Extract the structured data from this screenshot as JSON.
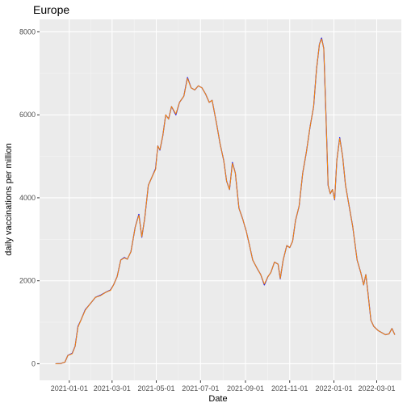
{
  "chart_data": {
    "type": "line",
    "title": "Europe",
    "xlabel": "Date",
    "ylabel": "daily vaccinations per million",
    "x_ticks": [
      "2021-01-01",
      "2021-03-01",
      "2021-05-01",
      "2021-07-01",
      "2021-09-01",
      "2021-11-01",
      "2022-01-01",
      "2022-03-01"
    ],
    "y_ticks": [
      0,
      2000,
      4000,
      6000,
      8000
    ],
    "xlim": [
      "2020-11-21",
      "2022-04-04"
    ],
    "ylim": [
      -400,
      8300
    ],
    "grid": true,
    "legend": "none",
    "series": [
      {
        "color": "#0000ff",
        "points": [
          [
            "2020-12-13",
            0
          ],
          [
            "2020-12-20",
            5
          ],
          [
            "2020-12-26",
            40
          ],
          [
            "2020-12-30",
            200
          ],
          [
            "2021-01-05",
            250
          ],
          [
            "2021-01-09",
            420
          ],
          [
            "2021-01-13",
            900
          ],
          [
            "2021-01-17",
            1050
          ],
          [
            "2021-01-23",
            1300
          ],
          [
            "2021-01-30",
            1450
          ],
          [
            "2021-02-06",
            1600
          ],
          [
            "2021-02-13",
            1650
          ],
          [
            "2021-02-20",
            1720
          ],
          [
            "2021-02-27",
            1780
          ],
          [
            "2021-03-03",
            1900
          ],
          [
            "2021-03-08",
            2100
          ],
          [
            "2021-03-13",
            2500
          ],
          [
            "2021-03-18",
            2560
          ],
          [
            "2021-03-22",
            2520
          ],
          [
            "2021-03-27",
            2700
          ],
          [
            "2021-04-02",
            3300
          ],
          [
            "2021-04-07",
            3600
          ],
          [
            "2021-04-11",
            3050
          ],
          [
            "2021-04-15",
            3500
          ],
          [
            "2021-04-20",
            4300
          ],
          [
            "2021-04-25",
            4500
          ],
          [
            "2021-04-30",
            4700
          ],
          [
            "2021-05-03",
            5250
          ],
          [
            "2021-05-06",
            5150
          ],
          [
            "2021-05-10",
            5500
          ],
          [
            "2021-05-14",
            6000
          ],
          [
            "2021-05-18",
            5900
          ],
          [
            "2021-05-22",
            6200
          ],
          [
            "2021-05-28",
            6000
          ],
          [
            "2021-06-02",
            6300
          ],
          [
            "2021-06-08",
            6450
          ],
          [
            "2021-06-13",
            6900
          ],
          [
            "2021-06-18",
            6650
          ],
          [
            "2021-06-23",
            6600
          ],
          [
            "2021-06-28",
            6700
          ],
          [
            "2021-07-03",
            6650
          ],
          [
            "2021-07-08",
            6500
          ],
          [
            "2021-07-13",
            6300
          ],
          [
            "2021-07-17",
            6350
          ],
          [
            "2021-07-23",
            5800
          ],
          [
            "2021-07-28",
            5300
          ],
          [
            "2021-08-02",
            4900
          ],
          [
            "2021-08-06",
            4400
          ],
          [
            "2021-08-10",
            4200
          ],
          [
            "2021-08-14",
            4850
          ],
          [
            "2021-08-18",
            4600
          ],
          [
            "2021-08-23",
            3750
          ],
          [
            "2021-08-28",
            3500
          ],
          [
            "2021-09-02",
            3200
          ],
          [
            "2021-09-06",
            2900
          ],
          [
            "2021-09-11",
            2500
          ],
          [
            "2021-09-17",
            2300
          ],
          [
            "2021-09-22",
            2150
          ],
          [
            "2021-09-27",
            1900
          ],
          [
            "2021-10-02",
            2100
          ],
          [
            "2021-10-06",
            2200
          ],
          [
            "2021-10-11",
            2450
          ],
          [
            "2021-10-16",
            2400
          ],
          [
            "2021-10-19",
            2050
          ],
          [
            "2021-10-23",
            2500
          ],
          [
            "2021-10-28",
            2850
          ],
          [
            "2021-11-01",
            2800
          ],
          [
            "2021-11-05",
            2950
          ],
          [
            "2021-11-09",
            3450
          ],
          [
            "2021-11-14",
            3800
          ],
          [
            "2021-11-19",
            4600
          ],
          [
            "2021-11-24",
            5100
          ],
          [
            "2021-11-29",
            5700
          ],
          [
            "2021-12-04",
            6200
          ],
          [
            "2021-12-08",
            7100
          ],
          [
            "2021-12-12",
            7700
          ],
          [
            "2021-12-15",
            7850
          ],
          [
            "2021-12-18",
            7600
          ],
          [
            "2021-12-21",
            6000
          ],
          [
            "2021-12-24",
            4300
          ],
          [
            "2021-12-27",
            4100
          ],
          [
            "2021-12-30",
            4200
          ],
          [
            "2022-01-02",
            3950
          ],
          [
            "2022-01-05",
            4900
          ],
          [
            "2022-01-09",
            5450
          ],
          [
            "2022-01-13",
            5000
          ],
          [
            "2022-01-17",
            4300
          ],
          [
            "2022-01-22",
            3800
          ],
          [
            "2022-01-27",
            3300
          ],
          [
            "2022-02-02",
            2500
          ],
          [
            "2022-02-07",
            2200
          ],
          [
            "2022-02-11",
            1900
          ],
          [
            "2022-02-14",
            2150
          ],
          [
            "2022-02-17",
            1700
          ],
          [
            "2022-02-21",
            1050
          ],
          [
            "2022-02-25",
            900
          ],
          [
            "2022-03-03",
            800
          ],
          [
            "2022-03-08",
            750
          ],
          [
            "2022-03-13",
            700
          ],
          [
            "2022-03-18",
            720
          ],
          [
            "2022-03-22",
            850
          ],
          [
            "2022-03-26",
            700
          ]
        ]
      },
      {
        "color": "#ff8c00",
        "points": [
          [
            "2020-12-13",
            0
          ],
          [
            "2020-12-20",
            5
          ],
          [
            "2020-12-26",
            40
          ],
          [
            "2020-12-30",
            200
          ],
          [
            "2021-01-05",
            240
          ],
          [
            "2021-01-09",
            420
          ],
          [
            "2021-01-13",
            880
          ],
          [
            "2021-01-17",
            1050
          ],
          [
            "2021-01-23",
            1290
          ],
          [
            "2021-01-30",
            1450
          ],
          [
            "2021-02-06",
            1600
          ],
          [
            "2021-02-13",
            1640
          ],
          [
            "2021-02-20",
            1720
          ],
          [
            "2021-02-27",
            1770
          ],
          [
            "2021-03-03",
            1900
          ],
          [
            "2021-03-08",
            2100
          ],
          [
            "2021-03-13",
            2500
          ],
          [
            "2021-03-18",
            2550
          ],
          [
            "2021-03-22",
            2520
          ],
          [
            "2021-03-27",
            2700
          ],
          [
            "2021-04-02",
            3300
          ],
          [
            "2021-04-07",
            3580
          ],
          [
            "2021-04-11",
            3060
          ],
          [
            "2021-04-15",
            3500
          ],
          [
            "2021-04-20",
            4300
          ],
          [
            "2021-04-25",
            4500
          ],
          [
            "2021-04-30",
            4680
          ],
          [
            "2021-05-03",
            5250
          ],
          [
            "2021-05-06",
            5160
          ],
          [
            "2021-05-10",
            5500
          ],
          [
            "2021-05-14",
            6000
          ],
          [
            "2021-05-18",
            5900
          ],
          [
            "2021-05-22",
            6200
          ],
          [
            "2021-05-28",
            6020
          ],
          [
            "2021-06-02",
            6300
          ],
          [
            "2021-06-08",
            6450
          ],
          [
            "2021-06-13",
            6880
          ],
          [
            "2021-06-18",
            6650
          ],
          [
            "2021-06-23",
            6600
          ],
          [
            "2021-06-28",
            6700
          ],
          [
            "2021-07-03",
            6650
          ],
          [
            "2021-07-08",
            6500
          ],
          [
            "2021-07-13",
            6300
          ],
          [
            "2021-07-17",
            6350
          ],
          [
            "2021-07-23",
            5800
          ],
          [
            "2021-07-28",
            5300
          ],
          [
            "2021-08-02",
            4900
          ],
          [
            "2021-08-06",
            4400
          ],
          [
            "2021-08-10",
            4200
          ],
          [
            "2021-08-14",
            4830
          ],
          [
            "2021-08-18",
            4600
          ],
          [
            "2021-08-23",
            3750
          ],
          [
            "2021-08-28",
            3500
          ],
          [
            "2021-09-02",
            3200
          ],
          [
            "2021-09-06",
            2900
          ],
          [
            "2021-09-11",
            2500
          ],
          [
            "2021-09-17",
            2300
          ],
          [
            "2021-09-22",
            2150
          ],
          [
            "2021-09-27",
            1920
          ],
          [
            "2021-10-02",
            2100
          ],
          [
            "2021-10-06",
            2200
          ],
          [
            "2021-10-11",
            2450
          ],
          [
            "2021-10-16",
            2400
          ],
          [
            "2021-10-19",
            2060
          ],
          [
            "2021-10-23",
            2500
          ],
          [
            "2021-10-28",
            2850
          ],
          [
            "2021-11-01",
            2800
          ],
          [
            "2021-11-05",
            2950
          ],
          [
            "2021-11-09",
            3450
          ],
          [
            "2021-11-14",
            3800
          ],
          [
            "2021-11-19",
            4600
          ],
          [
            "2021-11-24",
            5100
          ],
          [
            "2021-11-29",
            5700
          ],
          [
            "2021-12-04",
            6200
          ],
          [
            "2021-12-08",
            7100
          ],
          [
            "2021-12-12",
            7700
          ],
          [
            "2021-12-15",
            7830
          ],
          [
            "2021-12-18",
            7600
          ],
          [
            "2021-12-21",
            6000
          ],
          [
            "2021-12-24",
            4300
          ],
          [
            "2021-12-27",
            4100
          ],
          [
            "2021-12-30",
            4200
          ],
          [
            "2022-01-02",
            3960
          ],
          [
            "2022-01-05",
            4900
          ],
          [
            "2022-01-09",
            5430
          ],
          [
            "2022-01-13",
            5000
          ],
          [
            "2022-01-17",
            4300
          ],
          [
            "2022-01-22",
            3800
          ],
          [
            "2022-01-27",
            3300
          ],
          [
            "2022-02-02",
            2500
          ],
          [
            "2022-02-07",
            2200
          ],
          [
            "2022-02-11",
            1900
          ],
          [
            "2022-02-14",
            2150
          ],
          [
            "2022-02-17",
            1700
          ],
          [
            "2022-02-21",
            1050
          ],
          [
            "2022-02-25",
            900
          ],
          [
            "2022-03-03",
            800
          ],
          [
            "2022-03-08",
            750
          ],
          [
            "2022-03-13",
            700
          ],
          [
            "2022-03-18",
            720
          ],
          [
            "2022-03-22",
            850
          ],
          [
            "2022-03-26",
            700
          ]
        ]
      }
    ]
  },
  "colors": {
    "panel_background": "#ebebeb",
    "grid_major": "#ffffff",
    "grid_minor": "#f5f5f5",
    "tick": "#333333"
  }
}
